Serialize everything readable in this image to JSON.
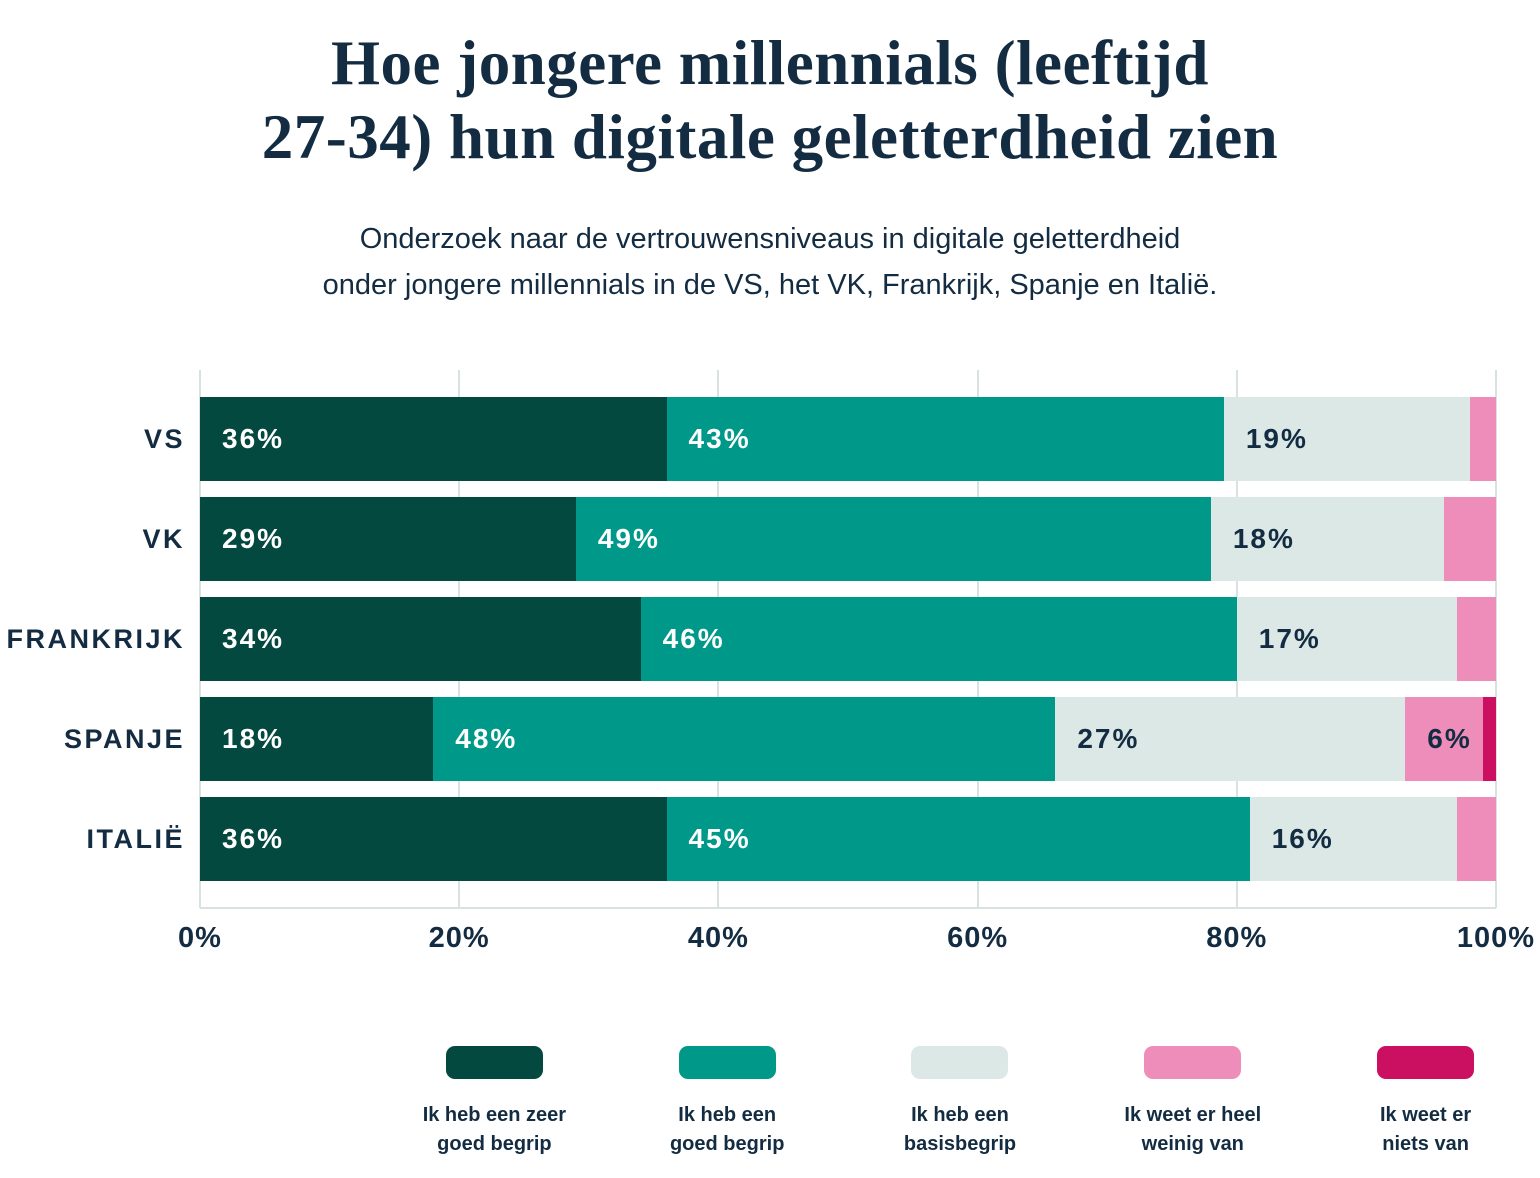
{
  "title_lines": [
    "Hoe jongere millennials (leeftijd",
    "27-34) hun digitale geletterdheid zien"
  ],
  "subtitle_lines": [
    "Onderzoek naar de vertrouwensniveaus in digitale geletterdheid",
    "onder jongere millennials in de VS, het VK, Frankrijk, Spanje en Italië."
  ],
  "colors": {
    "text_navy": "#132C42",
    "gridline": "#D8E2E0",
    "background": "#FFFFFF"
  },
  "chart_data": {
    "type": "bar",
    "orientation": "horizontal",
    "stacked": true,
    "grid": "vertical",
    "categories": [
      "VS",
      "VK",
      "FRANKRIJK",
      "SPANJE",
      "ITALIË"
    ],
    "series": [
      {
        "name": "Ik heb een zeer goed begrip",
        "color": "#04493F",
        "values": [
          36,
          29,
          34,
          18,
          36
        ]
      },
      {
        "name": "Ik heb een goed begrip",
        "color": "#009889",
        "values": [
          43,
          49,
          46,
          48,
          45
        ]
      },
      {
        "name": "Ik heb een basisbegrip",
        "color": "#DCE8E6",
        "values": [
          19,
          18,
          17,
          27,
          16
        ]
      },
      {
        "name": "Ik weet er heel weinig van",
        "color": "#EE8CBA",
        "values": [
          2,
          4,
          3,
          6,
          3
        ]
      },
      {
        "name": "Ik weet er niets van",
        "color": "#CB1062",
        "values": [
          0,
          0,
          0,
          1,
          0
        ]
      }
    ],
    "xlim": [
      0,
      100
    ],
    "x_ticks": [
      "0%",
      "20%",
      "40%",
      "60%",
      "80%",
      "100%"
    ],
    "data_label_format": "{v}%",
    "data_label_min_value": 6,
    "legend_position": "bottom"
  },
  "legend": {
    "items": [
      {
        "lines": "Ik heb een zeer\ngoed begrip"
      },
      {
        "lines": "Ik heb een\ngoed begrip"
      },
      {
        "lines": "Ik heb een\nbasisbegrip"
      },
      {
        "lines": "Ik weet er heel\nweinig van"
      },
      {
        "lines": "Ik weet er\nniets van"
      }
    ]
  }
}
